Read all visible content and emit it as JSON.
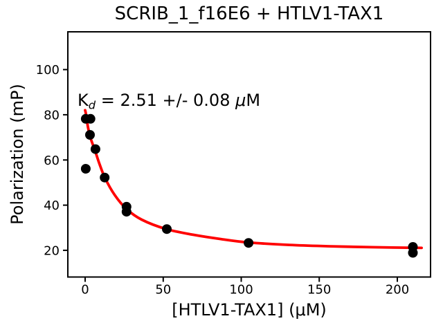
{
  "figure": {
    "title": "SCRIB_1_f16E6 + HTLV1-TAX1",
    "background_color": "#ffffff",
    "text_color": "#000000"
  },
  "annotation": {
    "k": "K",
    "sub": "d",
    "body": " = 2.51 +/- 0.08 ",
    "mu": "μ",
    "unit": "M"
  },
  "chart_data": {
    "type": "scatter",
    "title": "SCRIB_1_f16E6 + HTLV1-TAX1",
    "xlabel": "[HTLV1-TAX1] (μM)",
    "ylabel": "Polarization (mP)",
    "xlim": [
      -11.1,
      221.3
    ],
    "ylim": [
      8.2,
      116.7
    ],
    "x_ticks": [
      0,
      50,
      100,
      150,
      200
    ],
    "y_ticks": [
      20,
      40,
      60,
      80,
      100
    ],
    "grid": false,
    "legend": "none",
    "kd_annotation": "Kd = 2.51 +/- 0.08 μM",
    "kd_uM": 2.51,
    "kd_error_uM": 0.08,
    "series": [
      {
        "name": "fit-curve",
        "type": "line",
        "color": "#ff0000",
        "linewidth": 3.8,
        "points": [
          [
            0,
            82.0
          ],
          [
            0.5,
            80.3
          ],
          [
            1.8,
            74.5
          ],
          [
            3.5,
            69.6
          ],
          [
            6.2,
            64.4
          ],
          [
            9.3,
            58.0
          ],
          [
            12.8,
            51.9
          ],
          [
            19.0,
            44.4
          ],
          [
            26.5,
            38.3
          ],
          [
            36.2,
            33.6
          ],
          [
            52.0,
            29.4
          ],
          [
            69.2,
            26.9
          ],
          [
            86.9,
            25.0
          ],
          [
            104.5,
            23.5
          ],
          [
            131.0,
            22.4
          ],
          [
            157.4,
            21.8
          ],
          [
            183.9,
            21.4
          ],
          [
            215.6,
            21.1
          ]
        ]
      },
      {
        "name": "data-points",
        "type": "scatter",
        "color": "#000000",
        "marker_radius_px": 7,
        "points": [
          [
            0.4,
            78.2
          ],
          [
            3.4,
            78.2
          ],
          [
            3.1,
            71.1
          ],
          [
            6.6,
            64.8
          ],
          [
            0.4,
            56.1
          ],
          [
            12.5,
            52.2
          ],
          [
            26.5,
            39.3
          ],
          [
            26.5,
            37.1
          ],
          [
            52.3,
            29.4
          ],
          [
            104.7,
            23.3
          ],
          [
            210,
            21.5
          ],
          [
            210,
            18.9
          ]
        ]
      }
    ]
  }
}
